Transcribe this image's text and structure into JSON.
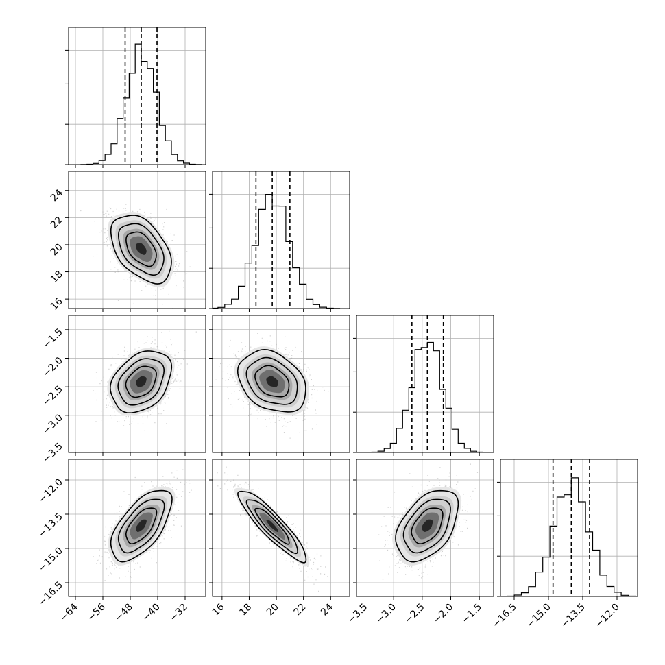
{
  "chart_data": {
    "type": "corner",
    "parameters": 4,
    "axes": [
      {
        "range": [
          -66,
          -26
        ],
        "ticks": [
          -64,
          -56,
          -48,
          -40,
          -32
        ],
        "tick_labels": [
          "−64",
          "−56",
          "−48",
          "−40",
          "−32"
        ]
      },
      {
        "range": [
          15.3,
          25.4
        ],
        "ticks": [
          16,
          18,
          20,
          22,
          24
        ],
        "tick_labels": [
          "16",
          "18",
          "20",
          "22",
          "24"
        ]
      },
      {
        "range": [
          -3.65,
          -1.25
        ],
        "ticks": [
          -3.5,
          -3.0,
          -2.5,
          -2.0,
          -1.5
        ],
        "tick_labels": [
          "−3.5",
          "−3.0",
          "−2.5",
          "−2.0",
          "−1.5"
        ]
      },
      {
        "range": [
          -17.1,
          -11.1
        ],
        "ticks": [
          -16.5,
          -15.0,
          -13.5,
          -12.0
        ],
        "tick_labels": [
          "−16.5",
          "−15.0",
          "−13.5",
          "−12.0"
        ]
      }
    ],
    "means": [
      -44.8,
      19.7,
      -2.41,
      -14.0
    ],
    "sigmas": [
      4.4,
      1.25,
      0.27,
      0.78
    ],
    "quantile_lines": [
      [
        -49.5,
        -44.8,
        -40.2
      ],
      [
        18.5,
        19.7,
        21.0
      ],
      [
        -2.68,
        -2.41,
        -2.13
      ],
      [
        -14.8,
        -14.0,
        -13.2
      ]
    ],
    "correlations": {
      "1-0": -0.45,
      "2-0": 0.32,
      "2-1": -0.3,
      "3-0": 0.62,
      "3-1": -0.9,
      "3-2": 0.45
    },
    "histogram_bins": 20,
    "grid": true,
    "contour_levels_sigma": [
      1.0,
      1.5,
      2.0
    ]
  }
}
